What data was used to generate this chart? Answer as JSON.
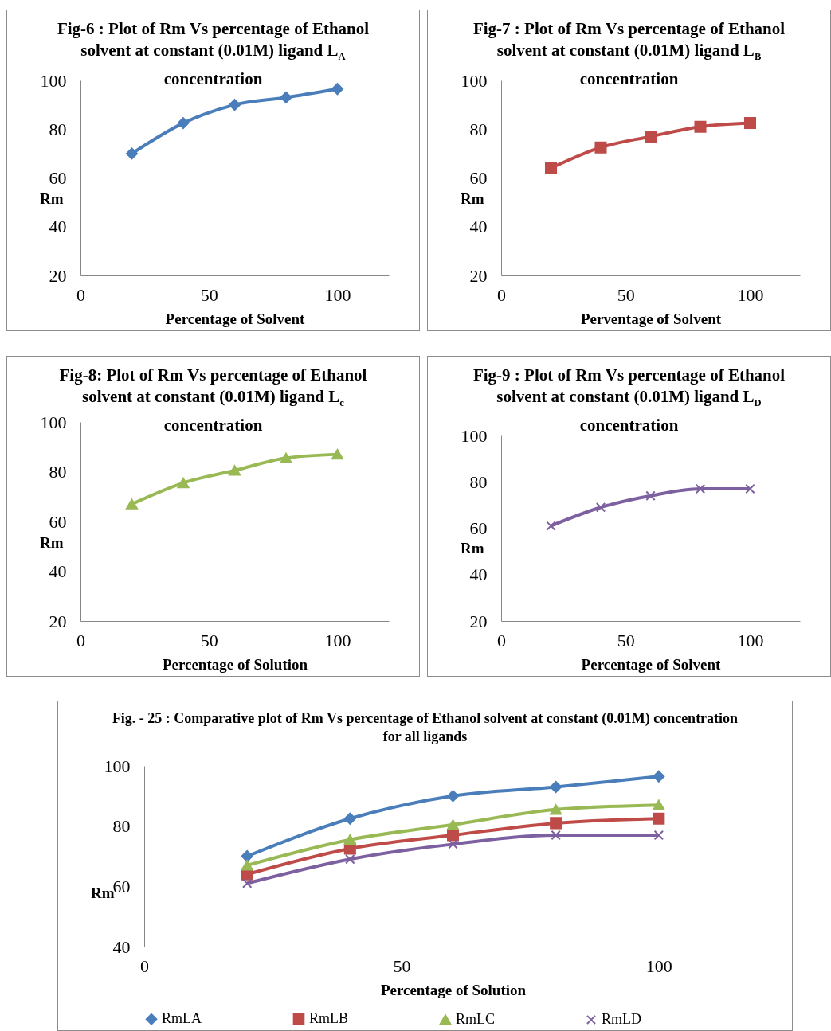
{
  "chart_data": [
    {
      "type": "line",
      "title": "Fig-6 : Plot of Rm Vs percentage of Ethanol solvent at constant (0.01M) ligand L$_{A}$ concentration",
      "xlabel": "Percentage of Solvent",
      "ylabel": "Rm",
      "x": [
        20,
        40,
        60,
        80,
        100
      ],
      "values": [
        70,
        82.5,
        90,
        93,
        96.5
      ],
      "color": "#4a7ebb",
      "marker": "diamond",
      "xlim": [
        0,
        120
      ],
      "xticks": [
        0,
        50,
        100
      ],
      "ylim": [
        20,
        100
      ],
      "yticks": [
        20,
        40,
        60,
        80,
        100
      ]
    },
    {
      "type": "line",
      "title": "Fig-7 : Plot of Rm Vs percentage of Ethanol solvent at constant (0.01M) ligand L$_{B}$ concentration",
      "xlabel": "Perventage of Solvent",
      "ylabel": "Rm",
      "x": [
        20,
        40,
        60,
        80,
        100
      ],
      "values": [
        64,
        72.5,
        77,
        81,
        82.5
      ],
      "color": "#be4b48",
      "marker": "square",
      "xlim": [
        0,
        120
      ],
      "xticks": [
        0,
        50,
        100
      ],
      "ylim": [
        20,
        100
      ],
      "yticks": [
        20,
        40,
        60,
        80,
        100
      ]
    },
    {
      "type": "line",
      "title": "Fig-8: Plot of Rm Vs percentage of Ethanol solvent at constant (0.01M) ligand  L$_{c}$ concentration",
      "xlabel": "Percentage of Solution",
      "ylabel": "Rm",
      "x": [
        20,
        40,
        60,
        80,
        100
      ],
      "values": [
        67,
        75.5,
        80.5,
        85.5,
        87
      ],
      "color": "#98b954",
      "marker": "triangle",
      "xlim": [
        0,
        120
      ],
      "xticks": [
        0,
        50,
        100
      ],
      "ylim": [
        20,
        100
      ],
      "yticks": [
        20,
        40,
        60,
        80,
        100
      ]
    },
    {
      "type": "line",
      "title": "Fig-9 : Plot of Rm Vs percentage of Ethanol solvent at constant (0.01M) ligand  L$_{D}$ concentration",
      "xlabel": "Percentage of Solvent",
      "ylabel": "Rm",
      "x": [
        20,
        40,
        60,
        80,
        100
      ],
      "values": [
        61,
        69,
        74,
        77,
        77
      ],
      "color": "#7d60a0",
      "marker": "cross",
      "xlim": [
        0,
        120
      ],
      "xticks": [
        0,
        50,
        100
      ],
      "ylim": [
        20,
        100
      ],
      "yticks": [
        20,
        40,
        60,
        80,
        100
      ]
    },
    {
      "type": "line",
      "title": "Fig. - 25 : Comparative plot of Rm Vs percentage of Ethanol solvent at constant (0.01M) concentration for all ligands",
      "xlabel": "Percentage of Solution",
      "ylabel": "Rm",
      "x": [
        20,
        40,
        60,
        80,
        100
      ],
      "legend": "bottom",
      "xlim": [
        0,
        120
      ],
      "xticks": [
        0,
        50,
        100
      ],
      "ylim": [
        40,
        100
      ],
      "yticks": [
        40,
        60,
        80,
        100
      ],
      "series": [
        {
          "name": "RmLA",
          "color": "#4a7ebb",
          "marker": "diamond",
          "values": [
            70,
            82.5,
            90,
            93,
            96.5
          ]
        },
        {
          "name": "RmLB",
          "color": "#be4b48",
          "marker": "square",
          "values": [
            64,
            72.5,
            77,
            81,
            82.5
          ]
        },
        {
          "name": "RmLC",
          "color": "#98b954",
          "marker": "triangle",
          "values": [
            67,
            75.5,
            80.5,
            85.5,
            87
          ]
        },
        {
          "name": "RmLD",
          "color": "#7d60a0",
          "marker": "cross",
          "values": [
            61,
            69,
            74,
            77,
            77
          ]
        }
      ]
    }
  ]
}
